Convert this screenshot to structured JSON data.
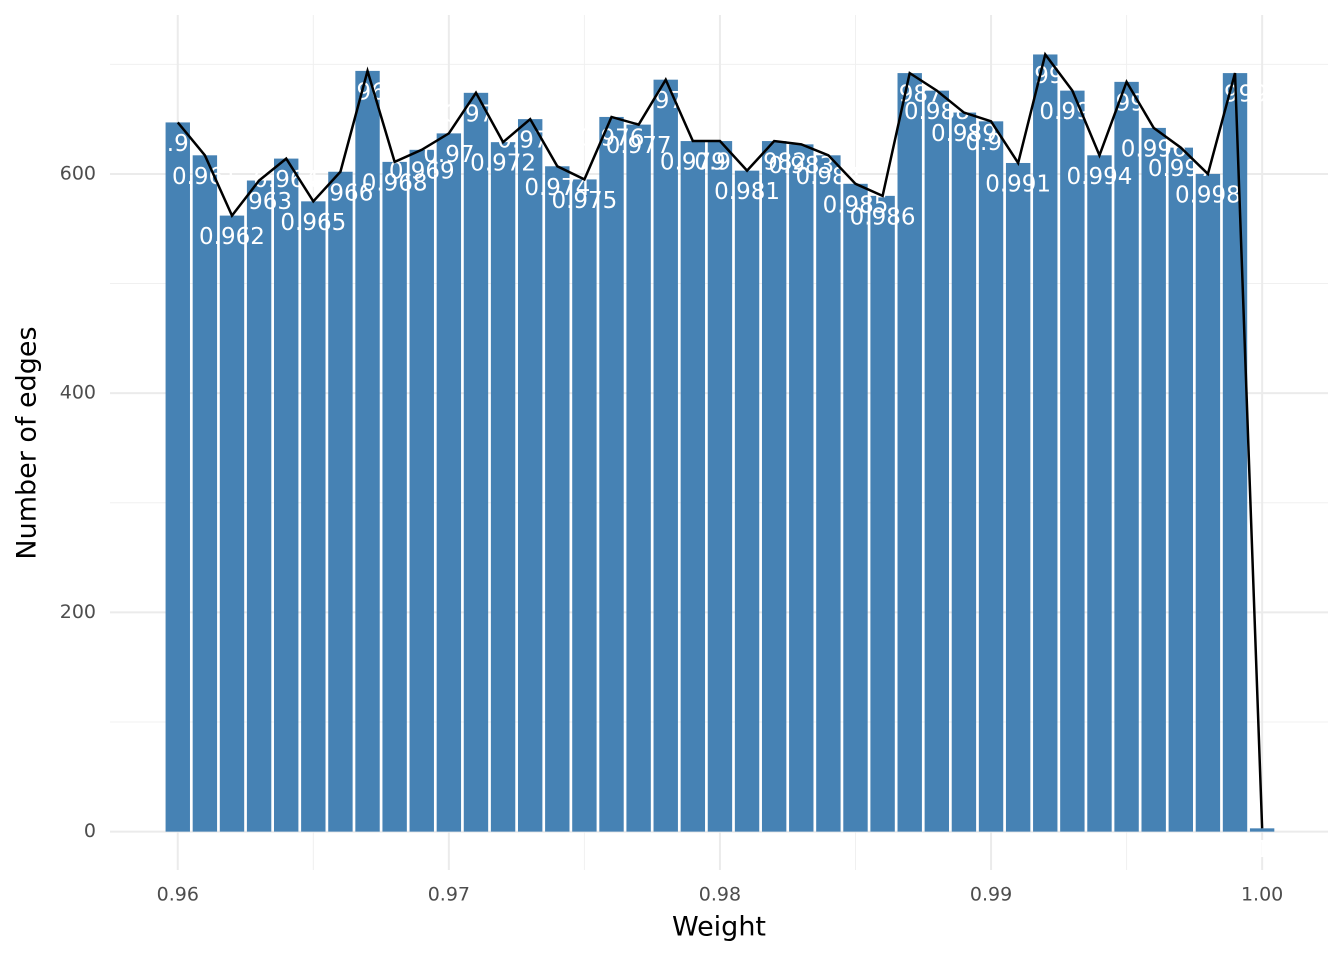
{
  "chart_data": {
    "type": "bar",
    "x_label": "Weight",
    "y_label": "Number of edges",
    "x": [
      0.96,
      0.961,
      0.962,
      0.963,
      0.964,
      0.965,
      0.966,
      0.967,
      0.968,
      0.969,
      0.97,
      0.971,
      0.972,
      0.973,
      0.974,
      0.975,
      0.976,
      0.977,
      0.978,
      0.979,
      0.98,
      0.981,
      0.982,
      0.983,
      0.984,
      0.985,
      0.986,
      0.987,
      0.988,
      0.989,
      0.99,
      0.991,
      0.992,
      0.993,
      0.994,
      0.995,
      0.996,
      0.997,
      0.998,
      0.999,
      1
    ],
    "values": [
      647,
      617,
      562,
      594,
      614,
      575,
      602,
      694,
      611,
      622,
      637,
      674,
      629,
      650,
      607,
      595,
      652,
      645,
      686,
      630,
      630,
      603,
      630,
      627,
      617,
      591,
      580,
      692,
      676,
      656,
      648,
      610,
      709,
      676,
      617,
      684,
      642,
      624,
      600,
      692,
      3
    ],
    "color": "#4682b4",
    "line_color": "#000000",
    "xlim": [
      0.9575,
      1.00243
    ],
    "ylim": [
      -35,
      745
    ],
    "xticks": [
      0.96,
      0.97,
      0.98,
      0.99,
      {
        "value": 1,
        "label": "1.00"
      }
    ],
    "x_minor_ticks": [
      0.965,
      0.975,
      0.985,
      0.995
    ],
    "yticks": [
      0,
      200,
      400,
      600
    ],
    "y_minor_ticks": [
      100,
      300,
      500,
      700
    ],
    "grid": true
  }
}
